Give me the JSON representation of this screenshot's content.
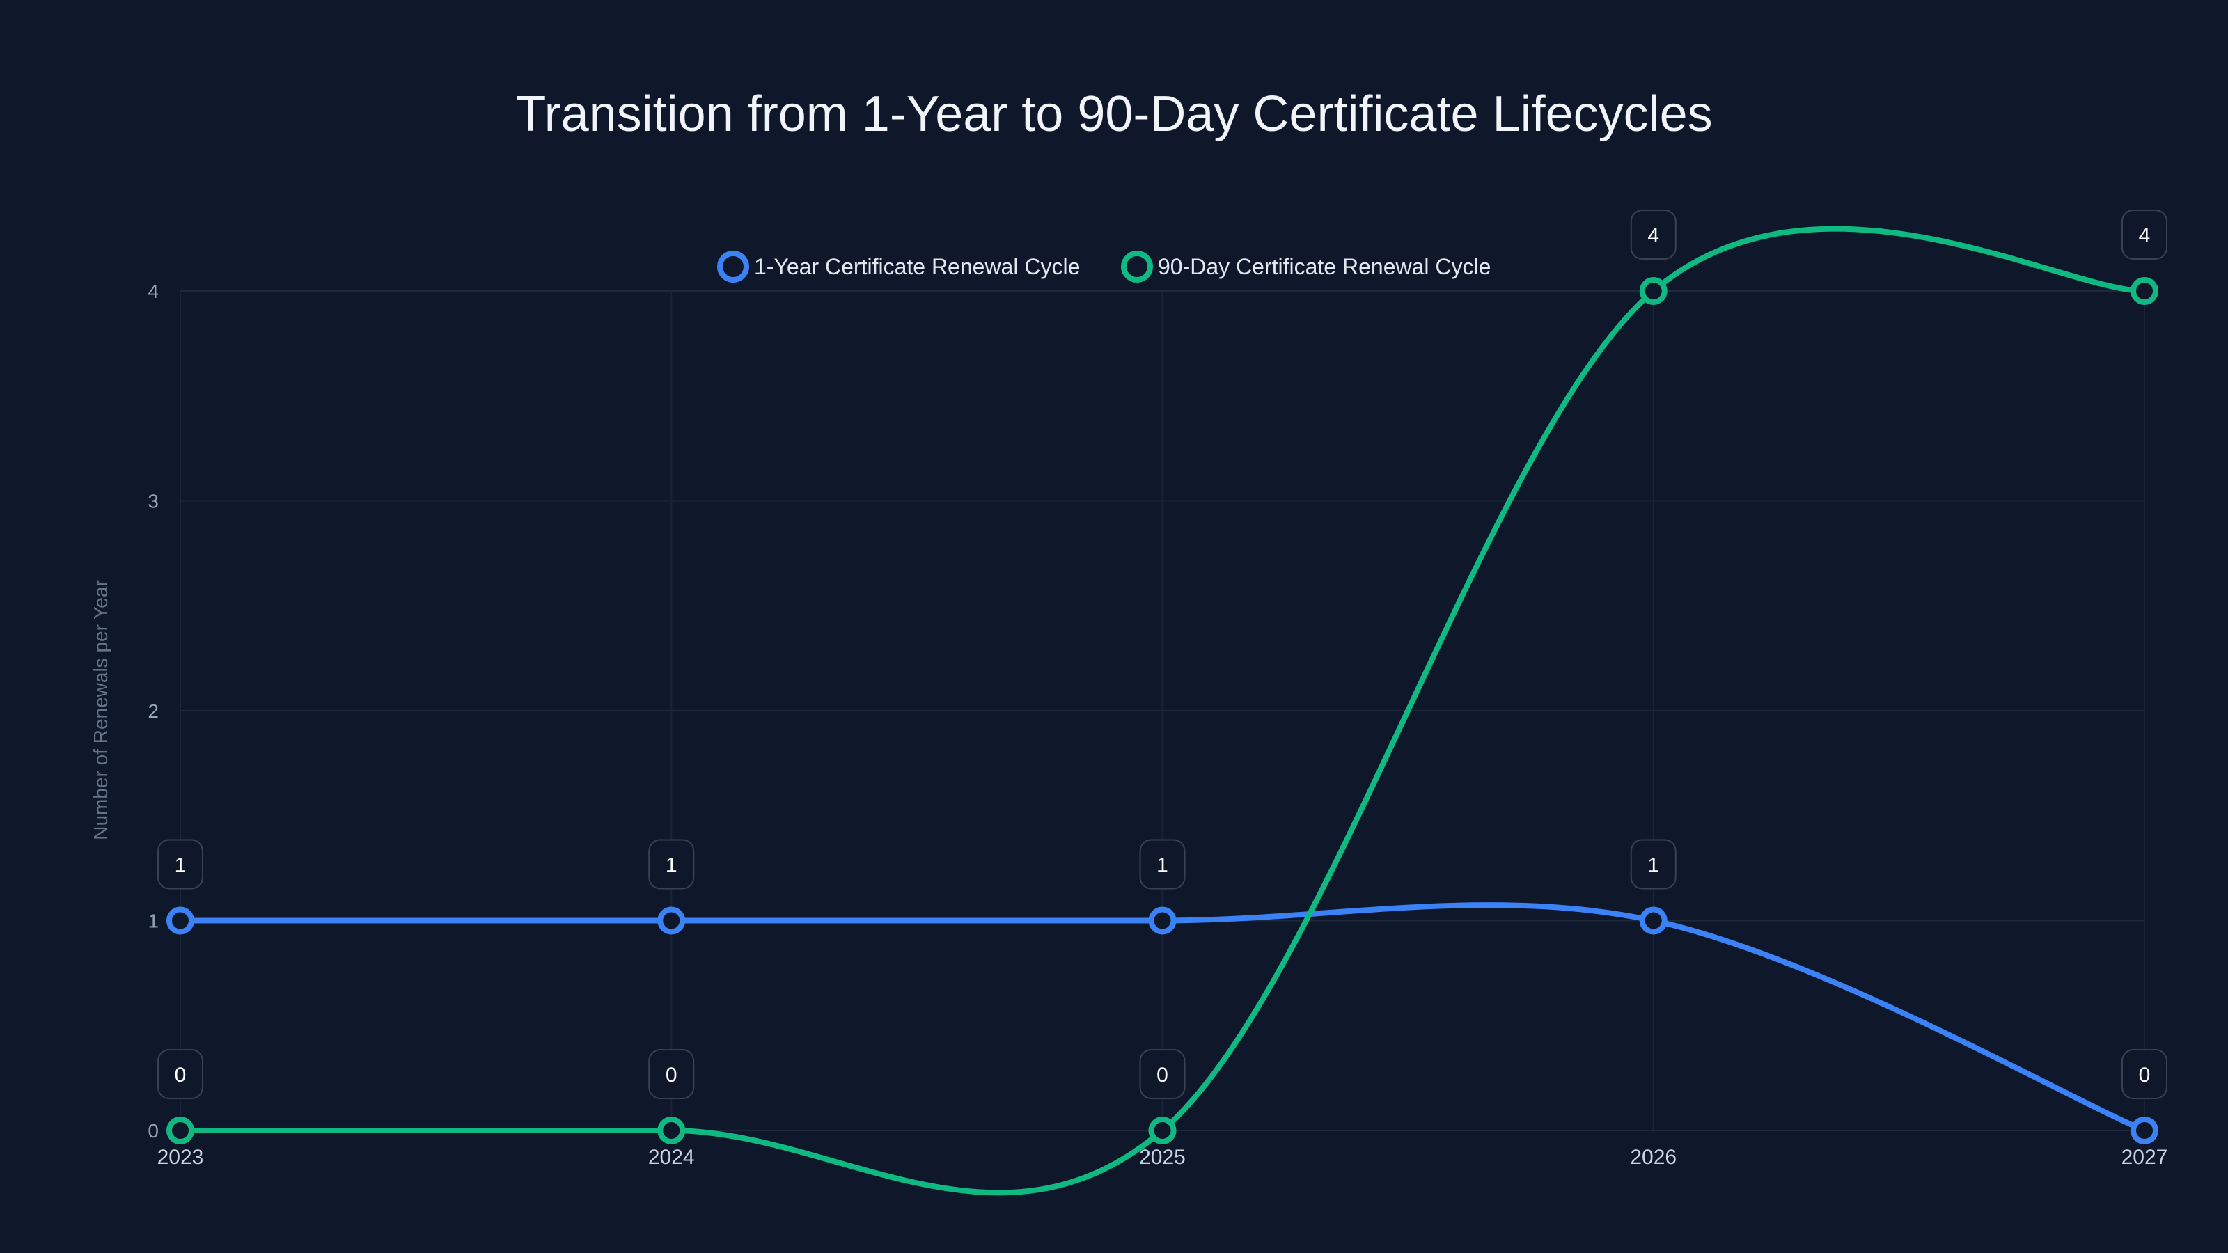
{
  "chart_data": {
    "type": "line",
    "title": "Transition from 1-Year to 90-Day Certificate Lifecycles",
    "xlabel": "",
    "ylabel": "Number of Renewals per Year",
    "categories": [
      "2023",
      "2024",
      "2025",
      "2026",
      "2027"
    ],
    "yticks": [
      "0",
      "1",
      "2",
      "3",
      "4"
    ],
    "ylim": [
      0,
      4
    ],
    "grid": true,
    "legend_position": "top-center",
    "smoothing": "spline",
    "series": [
      {
        "name": "1-Year Certificate Renewal Cycle",
        "color": "#3b82f6",
        "values": [
          1,
          1,
          1,
          1,
          0
        ],
        "data_labels": [
          "1",
          "1",
          "1",
          "1",
          "0"
        ]
      },
      {
        "name": "90-Day Certificate Renewal Cycle",
        "color": "#10b981",
        "values": [
          0,
          0,
          0,
          4,
          4
        ],
        "data_labels": [
          "0",
          "0",
          "0",
          "4",
          "4"
        ]
      }
    ]
  },
  "colors": {
    "background": "#0f172a",
    "grid": "#1e293b",
    "series_1year": "#3b82f6",
    "series_90day": "#10b981"
  }
}
